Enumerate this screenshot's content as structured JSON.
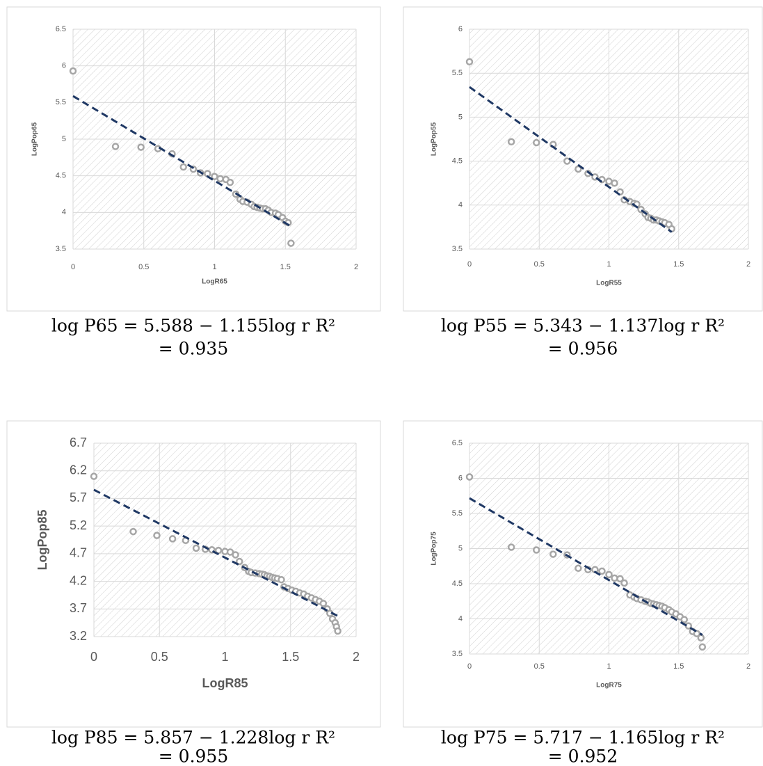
{
  "chart_data": [
    {
      "type": "scatter",
      "x_label": "LogR65",
      "y_label": "LogPop65",
      "color": "#a6a6a6",
      "x": [
        0,
        0.3,
        0.48,
        0.6,
        0.7,
        0.78,
        0.85,
        0.9,
        0.95,
        1.0,
        1.04,
        1.08,
        1.11,
        1.15,
        1.18,
        1.2,
        1.23,
        1.26,
        1.28,
        1.3,
        1.32,
        1.34,
        1.36,
        1.38,
        1.4,
        1.43,
        1.45,
        1.48,
        1.5,
        1.52,
        1.54
      ],
      "values": [
        5.93,
        4.9,
        4.89,
        4.87,
        4.8,
        4.62,
        4.59,
        4.54,
        4.53,
        4.49,
        4.46,
        4.45,
        4.41,
        4.25,
        4.18,
        4.15,
        4.14,
        4.11,
        4.08,
        4.07,
        4.06,
        4.05,
        4.05,
        4.03,
        4.0,
        3.99,
        3.97,
        3.93,
        3.88,
        3.86,
        3.58
      ],
      "trendline": {
        "x": [
          0,
          1.54
        ],
        "values": [
          5.588,
          3.809
        ],
        "color": "#1f3864"
      },
      "xlim": [
        0,
        2
      ],
      "ylim": [
        3.5,
        6.5
      ],
      "xticks": [
        0,
        0.5,
        1,
        1.5,
        2
      ],
      "yticks": [
        3.5,
        4,
        4.5,
        5,
        5.5,
        6,
        6.5
      ],
      "grid": true,
      "caption": [
        "log P65 = 5.588 − 1.155log r   R²",
        "= 0.935"
      ]
    },
    {
      "type": "scatter",
      "x_label": "LogR55",
      "y_label": "LogPop55",
      "color": "#a6a6a6",
      "x": [
        0,
        0.3,
        0.48,
        0.6,
        0.7,
        0.78,
        0.85,
        0.9,
        0.95,
        1.0,
        1.04,
        1.08,
        1.11,
        1.15,
        1.18,
        1.2,
        1.23,
        1.26,
        1.28,
        1.3,
        1.32,
        1.34,
        1.36,
        1.38,
        1.4,
        1.43,
        1.45
      ],
      "values": [
        5.63,
        4.72,
        4.71,
        4.69,
        4.5,
        4.41,
        4.36,
        4.32,
        4.29,
        4.27,
        4.25,
        4.15,
        4.06,
        4.04,
        4.02,
        4.01,
        3.95,
        3.9,
        3.86,
        3.85,
        3.83,
        3.83,
        3.82,
        3.81,
        3.8,
        3.78,
        3.73
      ],
      "trendline": {
        "x": [
          0,
          1.45
        ],
        "values": [
          5.343,
          3.694
        ],
        "color": "#1f3864"
      },
      "xlim": [
        0,
        2
      ],
      "ylim": [
        3.5,
        6
      ],
      "xticks": [
        0,
        0.5,
        1,
        1.5,
        2
      ],
      "yticks": [
        3.5,
        4,
        4.5,
        5,
        5.5,
        6
      ],
      "grid": true,
      "caption": [
        "log P55 = 5.343 − 1.137log r   R²",
        "= 0.956"
      ]
    },
    {
      "type": "scatter",
      "x_label": "LogR85",
      "y_label": "LogPop85",
      "color": "#a6a6a6",
      "x": [
        0,
        0.3,
        0.48,
        0.6,
        0.7,
        0.78,
        0.85,
        0.9,
        0.95,
        1.0,
        1.04,
        1.08,
        1.11,
        1.15,
        1.18,
        1.2,
        1.23,
        1.26,
        1.28,
        1.3,
        1.32,
        1.34,
        1.36,
        1.38,
        1.4,
        1.43,
        1.45,
        1.48,
        1.51,
        1.54,
        1.57,
        1.6,
        1.63,
        1.66,
        1.69,
        1.72,
        1.75,
        1.78,
        1.8,
        1.82,
        1.84,
        1.85,
        1.86
      ],
      "values": [
        6.1,
        5.1,
        5.03,
        4.97,
        4.94,
        4.8,
        4.78,
        4.77,
        4.76,
        4.74,
        4.73,
        4.68,
        4.56,
        4.45,
        4.38,
        4.36,
        4.35,
        4.34,
        4.33,
        4.32,
        4.3,
        4.29,
        4.27,
        4.26,
        4.25,
        4.23,
        4.1,
        4.07,
        4.04,
        4.02,
        3.99,
        3.97,
        3.93,
        3.9,
        3.87,
        3.84,
        3.8,
        3.7,
        3.62,
        3.52,
        3.45,
        3.38,
        3.3
      ],
      "trendline": {
        "x": [
          0,
          1.86
        ],
        "values": [
          5.857,
          3.573
        ],
        "color": "#1f3864"
      },
      "xlim": [
        0,
        2
      ],
      "ylim": [
        3.2,
        6.7
      ],
      "xticks": [
        0,
        0.5,
        1,
        1.5,
        2
      ],
      "yticks": [
        3.2,
        3.7,
        4.2,
        4.7,
        5.2,
        5.7,
        6.2,
        6.7
      ],
      "grid": true,
      "caption": [
        "log P85 = 5.857 − 1.228log r   R²",
        "= 0.955"
      ]
    },
    {
      "type": "scatter",
      "x_label": "LogR75",
      "y_label": "LogPop75",
      "color": "#a6a6a6",
      "x": [
        0,
        0.3,
        0.48,
        0.6,
        0.7,
        0.78,
        0.85,
        0.9,
        0.95,
        1.0,
        1.04,
        1.08,
        1.11,
        1.15,
        1.18,
        1.2,
        1.23,
        1.26,
        1.28,
        1.3,
        1.32,
        1.34,
        1.36,
        1.38,
        1.4,
        1.43,
        1.45,
        1.48,
        1.51,
        1.54,
        1.57,
        1.6,
        1.63,
        1.66,
        1.67
      ],
      "values": [
        6.02,
        5.02,
        4.98,
        4.92,
        4.91,
        4.72,
        4.7,
        4.7,
        4.68,
        4.63,
        4.58,
        4.57,
        4.51,
        4.34,
        4.31,
        4.29,
        4.27,
        4.25,
        4.24,
        4.22,
        4.21,
        4.2,
        4.19,
        4.18,
        4.16,
        4.13,
        4.1,
        4.07,
        4.03,
        3.99,
        3.9,
        3.82,
        3.79,
        3.73,
        3.6
      ],
      "trendline": {
        "x": [
          0,
          1.67
        ],
        "values": [
          5.717,
          3.771
        ],
        "color": "#1f3864"
      },
      "xlim": [
        0,
        2
      ],
      "ylim": [
        3.5,
        6.5
      ],
      "xticks": [
        0,
        0.5,
        1,
        1.5,
        2
      ],
      "yticks": [
        3.5,
        4,
        4.5,
        5,
        5.5,
        6,
        6.5
      ],
      "grid": true,
      "caption": [
        "log P75 = 5.717 − 1.165log r   R²",
        "= 0.952"
      ]
    }
  ]
}
